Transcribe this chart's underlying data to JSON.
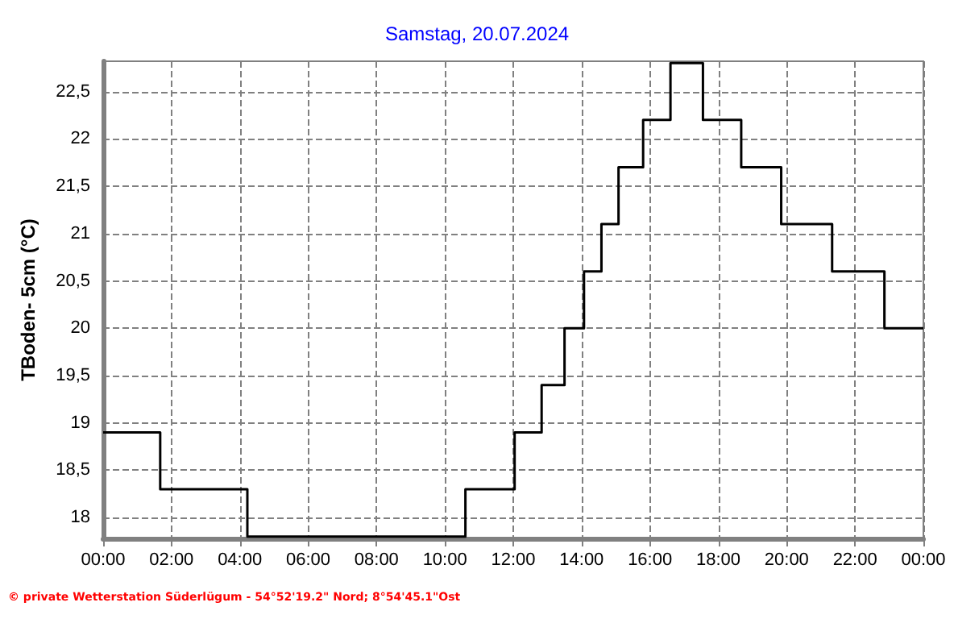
{
  "chart_data": {
    "type": "step",
    "title": "Samstag, 20.07.2024",
    "ylabel": "TBoden- 5cm (°C)",
    "annotations": [
      "© private Wetterstation Süderlügum - 54°52'19.2\" Nord; 8°54'45.1\"Ost"
    ],
    "x": [
      0,
      1.67,
      4.22,
      10.6,
      12.04,
      12.83,
      13.5,
      14.07,
      14.58,
      15.08,
      15.8,
      16.6,
      17.55,
      18.67,
      19.84,
      21.33,
      22.86,
      24
    ],
    "series": [
      {
        "color": "#000000",
        "values": [
          18.9,
          18.3,
          17.8,
          18.3,
          18.9,
          19.4,
          20.0,
          20.6,
          21.1,
          21.7,
          22.2,
          22.8,
          22.2,
          21.7,
          21.1,
          20.6,
          20.0,
          20.0
        ]
      }
    ],
    "xlim": [
      0,
      24
    ],
    "xticks": [
      {
        "value": 0,
        "label": "00:00"
      },
      {
        "value": 2,
        "label": "02:00"
      },
      {
        "value": 4,
        "label": "04:00"
      },
      {
        "value": 6,
        "label": "06:00"
      },
      {
        "value": 8,
        "label": "08:00"
      },
      {
        "value": 10,
        "label": "10:00"
      },
      {
        "value": 12,
        "label": "12:00"
      },
      {
        "value": 14,
        "label": "14:00"
      },
      {
        "value": 16,
        "label": "16:00"
      },
      {
        "value": 18,
        "label": "18:00"
      },
      {
        "value": 20,
        "label": "20:00"
      },
      {
        "value": 22,
        "label": "22:00"
      },
      {
        "value": 24,
        "label": "00:00"
      }
    ],
    "ylim": [
      17.78,
      22.82
    ],
    "yticks": [
      {
        "value": 18,
        "label": "18"
      },
      {
        "value": 18.5,
        "label": "18,5"
      },
      {
        "value": 19,
        "label": "19"
      },
      {
        "value": 19.5,
        "label": "19,5"
      },
      {
        "value": 20,
        "label": "20"
      },
      {
        "value": 20.5,
        "label": "20,5"
      },
      {
        "value": 21,
        "label": "21"
      },
      {
        "value": 21.5,
        "label": "21,5"
      },
      {
        "value": 22,
        "label": "22"
      },
      {
        "value": 22.5,
        "label": "22,5"
      }
    ],
    "grid": true,
    "marker": "none",
    "line_style": "solid"
  }
}
